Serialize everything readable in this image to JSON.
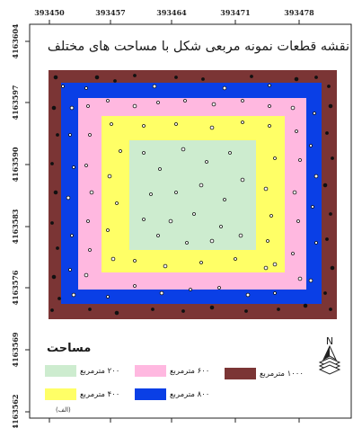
{
  "title": "نقشه قطعات نمونه مربعی شکل با مساحت های مختلف",
  "x_ticks": [
    "393450",
    "393457",
    "393464",
    "393471",
    "393478"
  ],
  "y_ticks": [
    "4163604",
    "4163597",
    "4163590",
    "4163583",
    "4163576",
    "4163569",
    "4163562"
  ],
  "legend": {
    "title": "مساحت",
    "items": [
      {
        "label": "۲۰۰ مترمربع",
        "color": "#cdeccf"
      },
      {
        "label": "۴۰۰ مترمربع",
        "color": "#ffff66"
      },
      {
        "label": "۶۰۰ مترمربع",
        "color": "#ffb8e0"
      },
      {
        "label": "۸۰۰ مترمربع",
        "color": "#0a3fe6"
      },
      {
        "label": "۱۰۰۰ مترمربع",
        "color": "#7b3535"
      }
    ]
  },
  "north_arrow_label": "N",
  "panel_label": "(الف)",
  "colors": {
    "point_fill": "#ffffff",
    "point_stroke": "#111111"
  }
}
